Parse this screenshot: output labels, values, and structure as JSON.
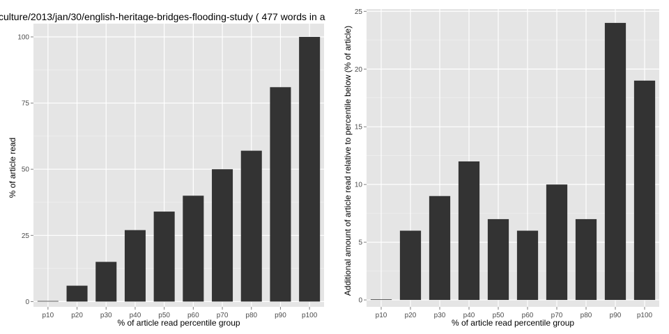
{
  "colors": {
    "panel_background": "#e5e5e5",
    "grid_major": "#ffffff",
    "grid_minor": "#f2f2f2",
    "bar_fill": "#333333",
    "tick_text": "#4d4d4d"
  },
  "chart_data": [
    {
      "type": "bar",
      "title": "culture/2013/jan/30/english-heritage-bridges-flooding-study ( 477 words in a",
      "xlabel": "% of article read percentile group",
      "ylabel": "% of article read",
      "categories": [
        "p10",
        "p20",
        "p30",
        "p40",
        "p50",
        "p60",
        "p70",
        "p80",
        "p90",
        "p100"
      ],
      "values": [
        0,
        6,
        15,
        27,
        34,
        40,
        50,
        57,
        81,
        100
      ],
      "yticks": [
        0,
        25,
        50,
        75,
        100
      ],
      "ylim": [
        -2,
        105
      ],
      "grid": true
    },
    {
      "type": "bar",
      "title": "",
      "xlabel": "% of article read percentile group",
      "ylabel": "Additional amount of article read relative to percentile below (% of article)",
      "categories": [
        "p10",
        "p20",
        "p30",
        "p40",
        "p50",
        "p60",
        "p70",
        "p80",
        "p90",
        "p100"
      ],
      "values": [
        0,
        6,
        9,
        12,
        7,
        6,
        10,
        7,
        24,
        19
      ],
      "yticks": [
        0,
        5,
        10,
        15,
        20,
        25
      ],
      "ylim": [
        -0.6,
        25.2
      ],
      "grid": true
    }
  ]
}
